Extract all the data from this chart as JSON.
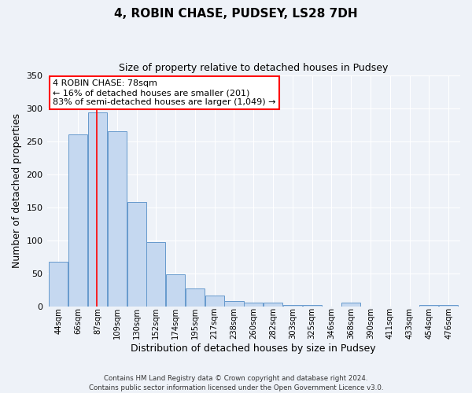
{
  "title": "4, ROBIN CHASE, PUDSEY, LS28 7DH",
  "subtitle": "Size of property relative to detached houses in Pudsey",
  "xlabel": "Distribution of detached houses by size in Pudsey",
  "ylabel": "Number of detached properties",
  "categories": [
    "44sqm",
    "66sqm",
    "87sqm",
    "109sqm",
    "130sqm",
    "152sqm",
    "174sqm",
    "195sqm",
    "217sqm",
    "238sqm",
    "260sqm",
    "282sqm",
    "303sqm",
    "325sqm",
    "346sqm",
    "368sqm",
    "390sqm",
    "411sqm",
    "433sqm",
    "454sqm",
    "476sqm"
  ],
  "values": [
    68,
    260,
    293,
    265,
    158,
    97,
    48,
    27,
    16,
    8,
    5,
    5,
    2,
    2,
    0,
    6,
    0,
    0,
    0,
    2,
    2
  ],
  "bar_color": "#c5d8f0",
  "bar_edge_color": "#6699cc",
  "red_line_x": 1.95,
  "ylim": [
    0,
    350
  ],
  "yticks": [
    0,
    50,
    100,
    150,
    200,
    250,
    300,
    350
  ],
  "annotation_line1": "4 ROBIN CHASE: 78sqm",
  "annotation_line2": "← 16% of detached houses are smaller (201)",
  "annotation_line3": "83% of semi-detached houses are larger (1,049) →",
  "footer1": "Contains HM Land Registry data © Crown copyright and database right 2024.",
  "footer2": "Contains public sector information licensed under the Open Government Licence v3.0.",
  "background_color": "#eef2f8",
  "plot_bg_color": "#eef2f8"
}
